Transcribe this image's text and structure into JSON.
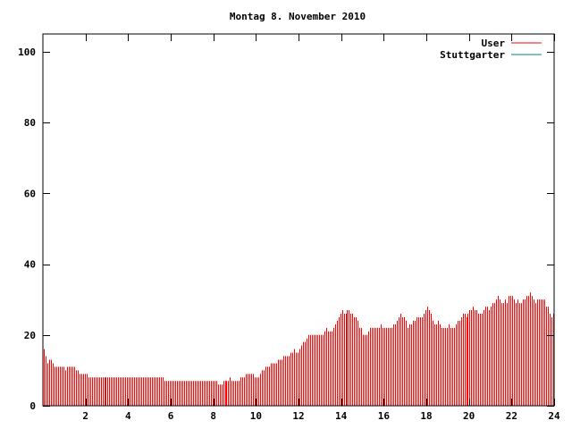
{
  "chart_data": {
    "type": "bar",
    "title": "Montag 8. November 2010",
    "xlabel": "",
    "ylabel": "",
    "xlim": [
      0,
      24
    ],
    "ylim": [
      0,
      105
    ],
    "x_ticks": [
      "2",
      "4",
      "6",
      "8",
      "10",
      "12",
      "14",
      "16",
      "18",
      "20",
      "22",
      "24"
    ],
    "y_ticks": [
      "0",
      "20",
      "40",
      "60",
      "80",
      "100"
    ],
    "grid": false,
    "legend_position": "top-right",
    "series": [
      {
        "name": "User",
        "color": "#ff0000",
        "bar_interval_hours": 0.0833,
        "values": [
          16,
          14,
          12,
          13,
          13,
          12,
          11,
          11,
          11,
          11,
          11,
          11,
          10,
          11,
          11,
          11,
          11,
          11,
          10,
          10,
          9,
          9,
          9,
          9,
          9,
          8,
          8,
          8,
          8,
          8,
          8,
          8,
          8,
          8,
          8,
          8,
          8,
          8,
          8,
          8,
          8,
          8,
          8,
          8,
          8,
          8,
          8,
          8,
          8,
          8,
          8,
          8,
          8,
          8,
          8,
          8,
          8,
          8,
          8,
          8,
          8,
          8,
          8,
          8,
          8,
          8,
          8,
          8,
          7,
          7,
          7,
          7,
          7,
          7,
          7,
          7,
          7,
          7,
          7,
          7,
          7,
          7,
          7,
          7,
          7,
          7,
          7,
          7,
          7,
          7,
          7,
          7,
          7,
          7,
          7,
          7,
          7,
          7,
          6,
          6,
          6,
          7,
          7,
          7,
          7,
          8,
          7,
          7,
          7,
          7,
          7,
          8,
          8,
          8,
          9,
          9,
          9,
          9,
          9,
          8,
          8,
          8,
          9,
          10,
          10,
          11,
          11,
          11,
          12,
          12,
          12,
          12,
          13,
          13,
          13,
          14,
          14,
          14,
          14,
          15,
          15,
          16,
          15,
          15,
          16,
          17,
          18,
          18,
          19,
          20,
          20,
          20,
          20,
          20,
          20,
          20,
          20,
          20,
          21,
          22,
          21,
          21,
          21,
          22,
          23,
          24,
          25,
          26,
          27,
          26,
          26,
          27,
          27,
          26,
          26,
          25,
          25,
          24,
          22,
          22,
          20,
          20,
          20,
          21,
          22,
          22,
          22,
          22,
          22,
          22,
          23,
          22,
          22,
          22,
          22,
          22,
          22,
          23,
          23,
          24,
          25,
          26,
          25,
          25,
          24,
          22,
          23,
          23,
          24,
          24,
          25,
          25,
          25,
          25,
          26,
          27,
          28,
          27,
          26,
          24,
          23,
          23,
          24,
          23,
          22,
          22,
          22,
          22,
          23,
          22,
          22,
          22,
          23,
          24,
          24,
          25,
          26,
          26,
          25,
          26,
          27,
          27,
          28,
          27,
          27,
          26,
          26,
          26,
          27,
          28,
          28,
          27,
          28,
          29,
          29,
          30,
          31,
          30,
          29,
          29,
          30,
          29,
          31,
          31,
          31,
          30,
          29,
          30,
          29,
          29,
          30,
          30,
          31,
          31,
          32,
          31,
          30,
          29,
          30,
          30,
          30,
          30,
          30,
          28,
          28,
          26,
          25,
          26,
          27,
          27,
          25,
          24,
          22,
          23,
          23,
          22,
          20,
          21,
          20,
          20,
          20,
          18,
          20,
          21,
          20,
          20,
          20,
          20
        ]
      },
      {
        "name": "Stuttgarter",
        "color": "#00807f",
        "values": []
      }
    ]
  }
}
